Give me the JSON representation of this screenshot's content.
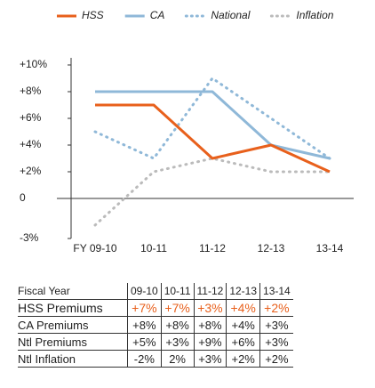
{
  "chart_data": {
    "type": "line",
    "categories": [
      "FY 09-10",
      "10-11",
      "11-12",
      "12-13",
      "13-14"
    ],
    "series": [
      {
        "name": "HSS",
        "color": "#e8601c",
        "style": "solid",
        "values": [
          7,
          7,
          3,
          4,
          2
        ]
      },
      {
        "name": "CA",
        "color": "#8fb8d8",
        "style": "solid",
        "values": [
          8,
          8,
          8,
          4,
          3
        ]
      },
      {
        "name": "National",
        "color": "#8fb8d8",
        "style": "dotted",
        "values": [
          5,
          3,
          9,
          6,
          3
        ]
      },
      {
        "name": "Inflation",
        "color": "#bbbbbb",
        "style": "dotted",
        "values": [
          -2,
          2,
          3,
          2,
          2
        ]
      }
    ],
    "ylim": [
      -3,
      10
    ],
    "yticks": [
      {
        "value": 10,
        "label": "+10%"
      },
      {
        "value": 8,
        "label": "+8%"
      },
      {
        "value": 6,
        "label": "+6%"
      },
      {
        "value": 4,
        "label": "+4%"
      },
      {
        "value": 2,
        "label": "+2%"
      },
      0,
      {
        "value": -3,
        "label": "-3%"
      }
    ],
    "grid": false
  },
  "table": {
    "header": [
      "Fiscal Year",
      "09-10",
      "10-11",
      "11-12",
      "12-13",
      "13-14"
    ],
    "rows": [
      [
        "HSS Premiums",
        "+7%",
        "+7%",
        "+3%",
        "+4%",
        "+2%"
      ],
      [
        "CA Premiums",
        "+8%",
        "+8%",
        "+8%",
        "+4%",
        "+3%"
      ],
      [
        "Ntl Premiums",
        "+5%",
        "+3%",
        "+9%",
        "+6%",
        "+3%"
      ],
      [
        "Ntl Inflation",
        "-2%",
        "2%",
        "+3%",
        "+2%",
        "+2%"
      ]
    ]
  }
}
